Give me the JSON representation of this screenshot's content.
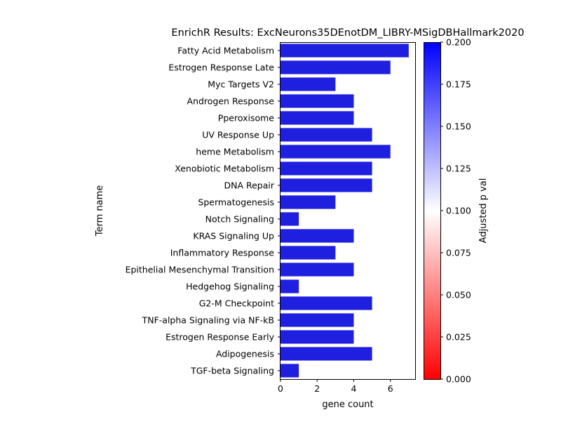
{
  "chart_data": {
    "type": "bar",
    "orientation": "horizontal",
    "title": "EnrichR Results: ExcNeurons35DEnotDM_LIBRY-MSigDBHallmark2020",
    "xlabel": "gene count",
    "ylabel": "Term name",
    "xlim": [
      0,
      7.35
    ],
    "xticks": [
      0,
      2,
      4,
      6
    ],
    "categories": [
      "Fatty Acid Metabolism",
      "Estrogen Response Late",
      "Myc Targets V2",
      "Androgen Response",
      "Pperoxisome",
      "UV Response Up",
      "heme Metabolism",
      "Xenobiotic Metabolism",
      "DNA Repair",
      "Spermatogenesis",
      "Notch Signaling",
      "KRAS Signaling Up",
      "Inflammatory Response",
      "Epithelial Mesenchymal Transition",
      "Hedgehog Signaling",
      "G2-M Checkpoint",
      "TNF-alpha Signaling via NF-kB",
      "Estrogen Response Early",
      "Adipogenesis",
      "TGF-beta Signaling"
    ],
    "values": [
      7,
      6,
      3,
      4,
      4,
      5,
      6,
      5,
      5,
      3,
      1,
      4,
      3,
      4,
      1,
      5,
      4,
      4,
      5,
      1
    ],
    "bar_color": "#1f1fe0",
    "colorbar": {
      "label": "Adjusted p val",
      "range": [
        0,
        0.2
      ],
      "ticks": [
        "0.000",
        "0.025",
        "0.050",
        "0.075",
        "0.100",
        "0.125",
        "0.150",
        "0.175",
        "0.200"
      ],
      "colormap": [
        "#ff0000",
        "#ffffff",
        "#0000ff"
      ]
    },
    "grid": false
  }
}
